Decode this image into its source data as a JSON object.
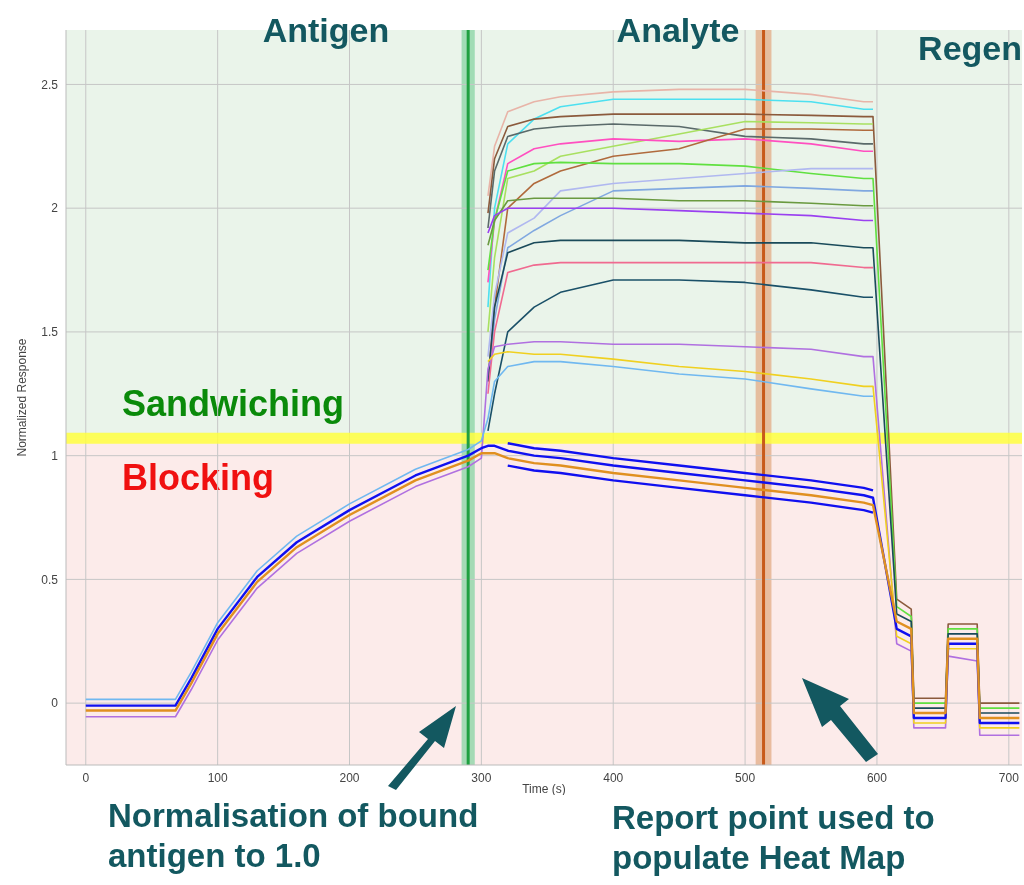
{
  "chart_data": {
    "type": "line",
    "xlabel": "Time (s)",
    "ylabel": "Normalized Response",
    "annotations": [
      "Antigen",
      "Analyte",
      "Regen",
      "Normalisation of bound antigen to 1.0",
      "Report point used to populate Heat Map"
    ],
    "x": [
      0,
      68,
      80,
      100,
      130,
      160,
      200,
      250,
      290,
      300,
      305,
      310,
      320,
      340,
      360,
      400,
      450,
      500,
      550,
      590,
      597,
      600,
      605,
      615,
      626,
      628,
      652,
      654,
      676,
      678,
      708
    ],
    "xlim": [
      -15,
      710
    ],
    "xticks": [
      0,
      100,
      200,
      300,
      400,
      500,
      600,
      700
    ],
    "ylim": [
      -0.25,
      2.72
    ],
    "yticks": [
      0,
      0.5,
      1,
      1.5,
      2,
      2.5
    ],
    "grid": true,
    "legend": false,
    "marker": "none",
    "line_style": "solid",
    "bands": [
      {
        "axis": "y",
        "from": 1.07,
        "to": 2.72,
        "label": "Sandwiching",
        "color": "#eaf4ea"
      },
      {
        "axis": "y",
        "from": -0.25,
        "to": 1.07,
        "label": "Blocking",
        "color": "#fcebea"
      },
      {
        "axis": "x",
        "from": 285,
        "to": 295,
        "color": "#8fd6a8"
      },
      {
        "axis": "x",
        "from": 508,
        "to": 520,
        "color": "#e3b08c"
      }
    ],
    "ref_lines": [
      {
        "axis": "y",
        "value": 1.07,
        "color": "#ffff40"
      },
      {
        "axis": "x",
        "value": 290,
        "color": "#20a040"
      },
      {
        "axis": "x",
        "value": 514,
        "color": "#c85a1a"
      }
    ],
    "series": [
      {
        "color": "#e8b4a8",
        "values": [
          null,
          null,
          null,
          null,
          null,
          null,
          null,
          null,
          null,
          null,
          2.05,
          2.25,
          2.39,
          2.43,
          2.45,
          2.47,
          2.48,
          2.48,
          2.46,
          2.43,
          2.43,
          null,
          null,
          null,
          null,
          null,
          null,
          null,
          null,
          null,
          null
        ]
      },
      {
        "color": "#4de0f0",
        "values": [
          null,
          null,
          null,
          null,
          null,
          null,
          null,
          null,
          null,
          null,
          1.6,
          2.0,
          2.26,
          2.36,
          2.41,
          2.44,
          2.44,
          2.44,
          2.43,
          2.4,
          2.4,
          null,
          null,
          null,
          null,
          null,
          null,
          null,
          null,
          null,
          null
        ]
      },
      {
        "color": "#8b5a3c",
        "values": [
          null,
          null,
          null,
          null,
          null,
          null,
          null,
          null,
          null,
          null,
          1.98,
          2.2,
          2.33,
          2.36,
          2.37,
          2.38,
          2.38,
          2.38,
          2.375,
          2.37,
          2.37,
          null,
          null,
          0.42,
          0.38,
          0.02,
          0.02,
          0.32,
          0.32,
          0.0,
          0.0
        ]
      },
      {
        "color": "#5a6a6a",
        "values": [
          null,
          null,
          null,
          null,
          null,
          null,
          null,
          null,
          null,
          null,
          1.92,
          2.15,
          2.29,
          2.32,
          2.33,
          2.34,
          2.33,
          2.29,
          2.28,
          2.26,
          2.26,
          null,
          null,
          null,
          null,
          null,
          null,
          null,
          null,
          null,
          null
        ]
      },
      {
        "color": "#a8e060",
        "values": [
          null,
          null,
          null,
          null,
          null,
          null,
          null,
          null,
          null,
          null,
          1.5,
          1.8,
          2.12,
          2.15,
          2.21,
          2.25,
          2.3,
          2.35,
          2.345,
          2.34,
          2.34,
          null,
          null,
          null,
          null,
          null,
          null,
          null,
          null,
          null,
          null
        ]
      },
      {
        "color": "#ff4fc0",
        "values": [
          null,
          null,
          null,
          null,
          null,
          null,
          null,
          null,
          null,
          null,
          1.7,
          1.95,
          2.18,
          2.24,
          2.26,
          2.28,
          2.27,
          2.28,
          2.26,
          2.23,
          2.23,
          null,
          null,
          null,
          null,
          null,
          null,
          null,
          null,
          null,
          null
        ]
      },
      {
        "color": "#b06a3c",
        "values": [
          null,
          null,
          null,
          null,
          null,
          null,
          null,
          null,
          null,
          null,
          1.3,
          1.6,
          2.0,
          2.1,
          2.15,
          2.21,
          2.24,
          2.32,
          2.32,
          2.315,
          2.315,
          null,
          null,
          null,
          null,
          null,
          null,
          null,
          null,
          null,
          null
        ]
      },
      {
        "color": "#60e040",
        "values": [
          null,
          null,
          null,
          null,
          null,
          null,
          null,
          null,
          null,
          null,
          1.75,
          1.95,
          2.15,
          2.18,
          2.185,
          2.18,
          2.18,
          2.17,
          2.14,
          2.12,
          2.12,
          null,
          null,
          0.39,
          0.35,
          0.0,
          0.0,
          0.3,
          0.3,
          -0.02,
          -0.02
        ]
      },
      {
        "color": "#b0b8f0",
        "values": [
          null,
          null,
          null,
          null,
          null,
          null,
          null,
          null,
          null,
          null,
          1.4,
          1.65,
          1.9,
          1.96,
          2.07,
          2.1,
          2.12,
          2.14,
          2.16,
          2.16,
          2.16,
          null,
          null,
          null,
          null,
          null,
          null,
          null,
          null,
          null,
          null
        ]
      },
      {
        "color": "#80a8e0",
        "values": [
          null,
          null,
          null,
          null,
          null,
          null,
          null,
          null,
          null,
          null,
          1.3,
          1.55,
          1.84,
          1.91,
          1.97,
          2.07,
          2.08,
          2.09,
          2.08,
          2.07,
          2.07,
          null,
          null,
          null,
          null,
          null,
          null,
          null,
          null,
          null,
          null
        ]
      },
      {
        "color": "#6a9a40",
        "values": [
          null,
          null,
          null,
          null,
          null,
          null,
          null,
          null,
          null,
          null,
          1.85,
          1.95,
          2.03,
          2.04,
          2.04,
          2.04,
          2.03,
          2.03,
          2.02,
          2.01,
          2.01,
          null,
          null,
          null,
          null,
          null,
          null,
          null,
          null,
          null,
          null
        ]
      },
      {
        "color": "#9a40f0",
        "values": [
          null,
          null,
          null,
          null,
          null,
          null,
          null,
          null,
          null,
          null,
          1.9,
          1.97,
          2.0,
          2.0,
          2.0,
          2.0,
          1.99,
          1.98,
          1.97,
          1.95,
          1.95,
          null,
          null,
          null,
          null,
          null,
          null,
          null,
          null,
          null,
          null
        ]
      },
      {
        "color": "#1a4a5a",
        "values": [
          null,
          null,
          null,
          null,
          null,
          null,
          null,
          null,
          null,
          null,
          1.3,
          1.6,
          1.82,
          1.86,
          1.87,
          1.87,
          1.87,
          1.86,
          1.86,
          1.84,
          1.84,
          null,
          null,
          0.36,
          0.33,
          -0.02,
          -0.02,
          0.28,
          0.28,
          -0.04,
          -0.04
        ]
      },
      {
        "color": "#f06a90",
        "values": [
          null,
          null,
          null,
          null,
          null,
          null,
          null,
          null,
          null,
          null,
          1.25,
          1.5,
          1.74,
          1.77,
          1.78,
          1.78,
          1.78,
          1.78,
          1.78,
          1.76,
          1.76,
          null,
          null,
          null,
          null,
          null,
          null,
          null,
          null,
          null,
          null
        ]
      },
      {
        "color": "#1a5068",
        "values": [
          null,
          null,
          null,
          null,
          null,
          null,
          null,
          null,
          null,
          null,
          1.1,
          1.25,
          1.5,
          1.6,
          1.66,
          1.71,
          1.71,
          1.7,
          1.67,
          1.64,
          1.64,
          null,
          null,
          null,
          null,
          null,
          null,
          null,
          null,
          null,
          null
        ]
      },
      {
        "color": "#b070e0",
        "values": [
          -0.055,
          -0.055,
          0.055,
          0.255,
          0.465,
          0.605,
          0.735,
          0.875,
          0.955,
          0.99,
          1.35,
          1.44,
          1.45,
          1.46,
          1.46,
          1.45,
          1.45,
          1.44,
          1.43,
          1.4,
          1.4,
          null,
          null,
          0.24,
          0.21,
          -0.1,
          -0.1,
          0.19,
          0.17,
          -0.13,
          -0.13
        ]
      },
      {
        "color": "#f0d020",
        "values": [
          null,
          null,
          null,
          null,
          null,
          null,
          null,
          null,
          null,
          null,
          1.38,
          1.41,
          1.42,
          1.41,
          1.41,
          1.39,
          1.36,
          1.34,
          1.31,
          1.28,
          1.28,
          null,
          null,
          0.27,
          0.24,
          -0.08,
          -0.08,
          0.22,
          0.22,
          -0.1,
          -0.1
        ]
      },
      {
        "color": "#70b8f0",
        "values": [
          0.015,
          0.015,
          0.125,
          0.325,
          0.535,
          0.675,
          0.805,
          0.945,
          1.025,
          1.06,
          1.15,
          1.3,
          1.36,
          1.38,
          1.38,
          1.36,
          1.33,
          1.31,
          1.27,
          1.24,
          1.24,
          null,
          null,
          null,
          null,
          null,
          null,
          null,
          null,
          null,
          null
        ]
      },
      {
        "color": "#1010f0",
        "values": [
          -0.01,
          -0.01,
          0.1,
          0.3,
          0.51,
          0.65,
          0.78,
          0.92,
          1.0,
          1.03,
          1.04,
          1.04,
          1.02,
          1.0,
          0.99,
          0.96,
          0.93,
          0.9,
          0.87,
          0.84,
          0.83,
          null,
          null,
          0.3,
          0.27,
          -0.06,
          -0.06,
          0.24,
          0.24,
          -0.08,
          -0.08
        ]
      },
      {
        "color": "#1010f0",
        "values": [
          null,
          null,
          null,
          null,
          null,
          null,
          null,
          null,
          null,
          null,
          null,
          null,
          1.05,
          1.03,
          1.02,
          0.99,
          0.96,
          0.93,
          0.9,
          0.87,
          0.86,
          null,
          null,
          null,
          null,
          null,
          null,
          null,
          null,
          null,
          null
        ]
      },
      {
        "color": "#1010f0",
        "values": [
          null,
          null,
          null,
          null,
          null,
          null,
          null,
          null,
          null,
          null,
          null,
          null,
          0.96,
          0.94,
          0.93,
          0.9,
          0.87,
          0.84,
          0.81,
          0.78,
          0.77,
          null,
          null,
          null,
          null,
          null,
          null,
          null,
          null,
          null,
          null
        ]
      },
      {
        "color": "#e09020",
        "values": [
          -0.03,
          -0.03,
          0.08,
          0.28,
          0.49,
          0.63,
          0.76,
          0.9,
          0.98,
          1.01,
          1.01,
          1.01,
          0.99,
          0.97,
          0.96,
          0.93,
          0.9,
          0.87,
          0.84,
          0.81,
          0.8,
          null,
          null,
          0.33,
          0.3,
          -0.04,
          -0.04,
          0.26,
          0.26,
          -0.06,
          -0.06
        ]
      }
    ]
  }
}
